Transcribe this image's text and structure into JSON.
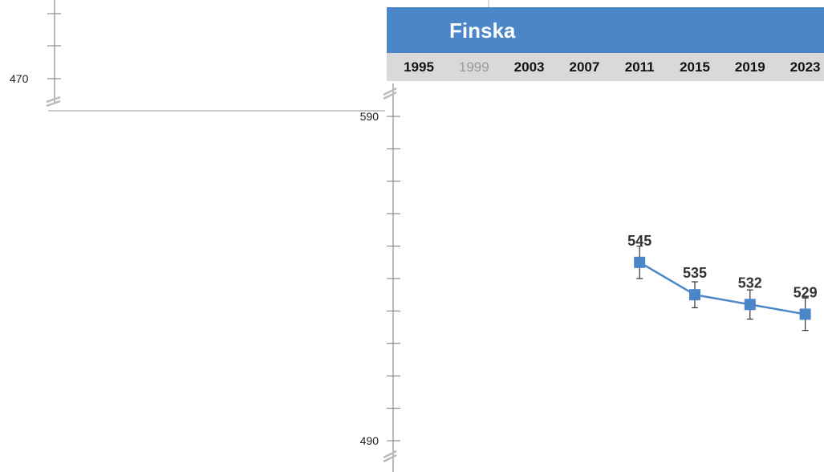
{
  "left_panel": {
    "y_tick_label": "470"
  },
  "chart_data": {
    "type": "line",
    "title": "Finska",
    "x": [
      "1995",
      "1999",
      "2003",
      "2007",
      "2011",
      "2015",
      "2019",
      "2023"
    ],
    "x_dimmed": [
      "1999"
    ],
    "series": [
      {
        "values": [
          null,
          null,
          null,
          null,
          545,
          535,
          532,
          529
        ]
      }
    ],
    "error_bars": [
      null,
      null,
      null,
      null,
      5,
      4,
      4.5,
      5
    ],
    "ylim": [
      490,
      590
    ],
    "y_tick_labels": [
      "590",
      "490"
    ],
    "y_minor_step": 10,
    "colors": {
      "header": "#4a86c8",
      "year_band": "#d9d9d9",
      "series": "#4a86c8"
    }
  }
}
